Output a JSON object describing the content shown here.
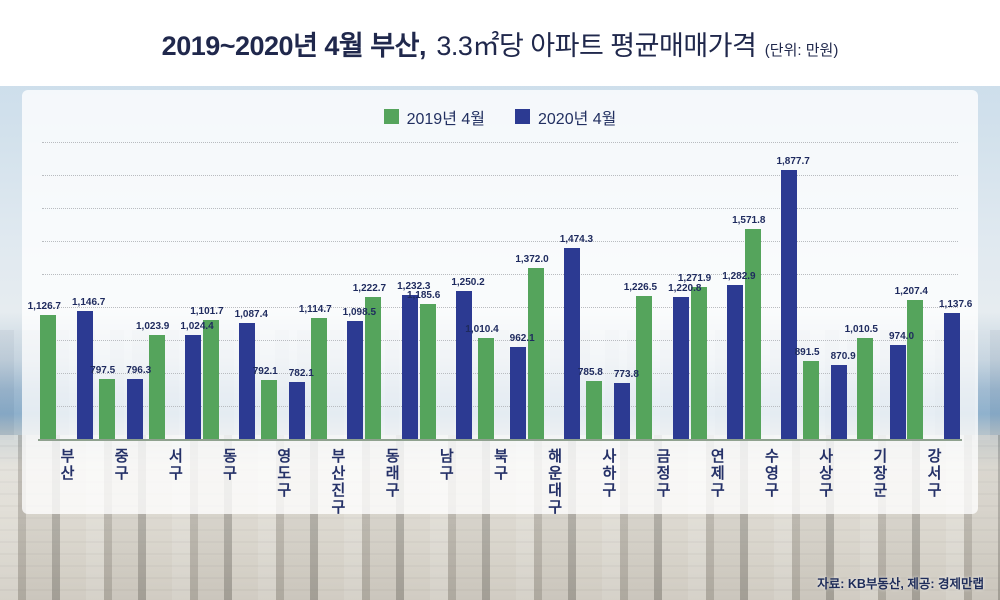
{
  "title": {
    "bold": "2019~2020년 4월 부산,",
    "regular": "3.3㎡당 아파트 평균매매가격",
    "unit": "(단위: 만원)"
  },
  "source": "자료: KB부동산, 제공: 경제만랩",
  "chart_data": {
    "type": "bar",
    "title": "2019~2020년 4월 부산, 3.3㎡당 아파트 평균매매가격",
    "unit": "만원",
    "categories": [
      "부산",
      "중구",
      "서구",
      "동구",
      "영도구",
      "부산진구",
      "동래구",
      "남구",
      "북구",
      "해운대구",
      "사하구",
      "금정구",
      "연제구",
      "수영구",
      "사상구",
      "기장군",
      "강서구"
    ],
    "series": [
      {
        "name": "2019년 4월",
        "color": "#55a45c",
        "values": [
          1126.7,
          797.5,
          1023.9,
          1101.7,
          792.1,
          1114.7,
          1222.7,
          1185.6,
          1010.4,
          1372.0,
          785.8,
          1226.5,
          1271.9,
          1571.8,
          891.5,
          1010.5,
          1207.4
        ]
      },
      {
        "name": "2020년 4월",
        "color": "#2c3a92",
        "values": [
          1146.7,
          796.3,
          1024.4,
          1087.4,
          782.1,
          1098.5,
          1232.3,
          1250.2,
          962.1,
          1474.3,
          773.8,
          1220.8,
          1282.9,
          1877.7,
          870.9,
          974.0,
          1137.6
        ]
      }
    ],
    "legend_position": "top-center",
    "grid": "horizontal-dotted",
    "y_axis_start": 480,
    "y_axis_max": 1900
  }
}
